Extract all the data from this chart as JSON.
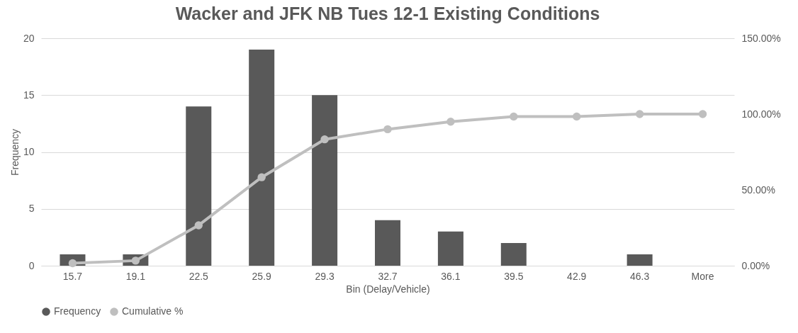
{
  "chart_data": {
    "type": "bar",
    "title": "Wacker and JFK NB Tues 12-1 Existing Conditions",
    "xlabel": "Bin (Delay/Vehicle)",
    "ylabel": "Frequency",
    "categories": [
      "15.7",
      "19.1",
      "22.5",
      "25.9",
      "29.3",
      "32.7",
      "36.1",
      "39.5",
      "42.9",
      "46.3",
      "More"
    ],
    "series": [
      {
        "name": "Frequency",
        "color": "#595959",
        "values": [
          1,
          1,
          14,
          19,
          15,
          4,
          3,
          2,
          0,
          1,
          0
        ]
      },
      {
        "name": "Cumulative %",
        "type": "line",
        "axis": "y2",
        "color": "#bfbfbf",
        "marker": "circle",
        "line_style": "solid",
        "values": [
          1.67,
          3.33,
          26.67,
          58.33,
          83.33,
          90,
          95,
          98.33,
          98.33,
          100,
          100
        ]
      }
    ],
    "ylim": [
      0,
      20
    ],
    "yticks": [
      0,
      5,
      10,
      15,
      20
    ],
    "y2lim": [
      0,
      150
    ],
    "y2ticks": [
      {
        "value": 0,
        "label": "0.00%"
      },
      {
        "value": 50,
        "label": "50.00%"
      },
      {
        "value": 100,
        "label": "100.00%"
      },
      {
        "value": 150,
        "label": "150.00%"
      }
    ],
    "grid": "y",
    "legend": "bottom"
  }
}
